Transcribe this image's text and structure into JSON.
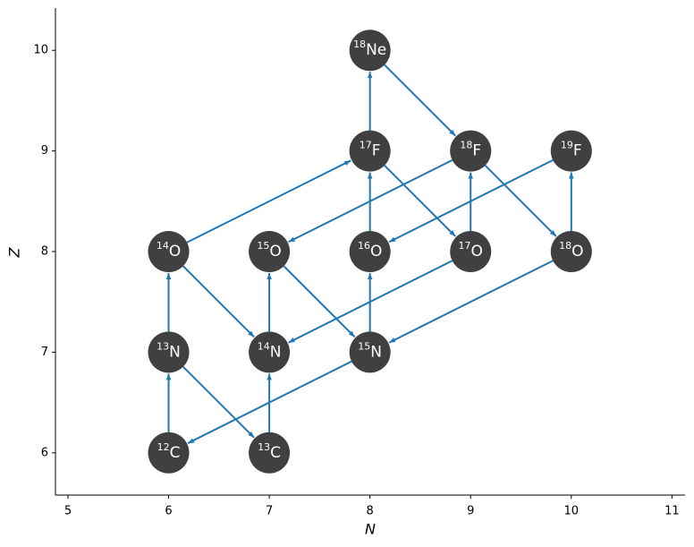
{
  "chart_data": {
    "type": "network",
    "xlabel": "N",
    "ylabel": "Z",
    "xlim": [
      4.876,
      11.13
    ],
    "ylim": [
      5.58,
      10.42
    ],
    "xticks": [
      5,
      6,
      7,
      8,
      9,
      10,
      11
    ],
    "yticks": [
      6,
      7,
      8,
      9,
      10
    ],
    "node_color": "#404040",
    "edge_color": "#1f77b4",
    "nodes": [
      {
        "mass": 12,
        "element": "C",
        "x": 6,
        "y": 6
      },
      {
        "mass": 13,
        "element": "C",
        "x": 7,
        "y": 6
      },
      {
        "mass": 13,
        "element": "N",
        "x": 6,
        "y": 7
      },
      {
        "mass": 14,
        "element": "N",
        "x": 7,
        "y": 7
      },
      {
        "mass": 15,
        "element": "N",
        "x": 8,
        "y": 7
      },
      {
        "mass": 14,
        "element": "O",
        "x": 6,
        "y": 8
      },
      {
        "mass": 15,
        "element": "O",
        "x": 7,
        "y": 8
      },
      {
        "mass": 16,
        "element": "O",
        "x": 8,
        "y": 8
      },
      {
        "mass": 17,
        "element": "O",
        "x": 9,
        "y": 8
      },
      {
        "mass": 18,
        "element": "O",
        "x": 10,
        "y": 8
      },
      {
        "mass": 17,
        "element": "F",
        "x": 8,
        "y": 9
      },
      {
        "mass": 18,
        "element": "F",
        "x": 9,
        "y": 9
      },
      {
        "mass": 19,
        "element": "F",
        "x": 10,
        "y": 9
      },
      {
        "mass": 18,
        "element": "Ne",
        "x": 8,
        "y": 10
      }
    ],
    "edges": [
      [
        0,
        2
      ],
      [
        2,
        1
      ],
      [
        1,
        3
      ],
      [
        2,
        5
      ],
      [
        5,
        3
      ],
      [
        3,
        6
      ],
      [
        6,
        4
      ],
      [
        4,
        0
      ],
      [
        4,
        7
      ],
      [
        7,
        10
      ],
      [
        10,
        8
      ],
      [
        8,
        3
      ],
      [
        8,
        11
      ],
      [
        11,
        6
      ],
      [
        11,
        9
      ],
      [
        9,
        4
      ],
      [
        9,
        12
      ],
      [
        12,
        7
      ],
      [
        5,
        10
      ],
      [
        10,
        13
      ],
      [
        13,
        11
      ]
    ]
  }
}
